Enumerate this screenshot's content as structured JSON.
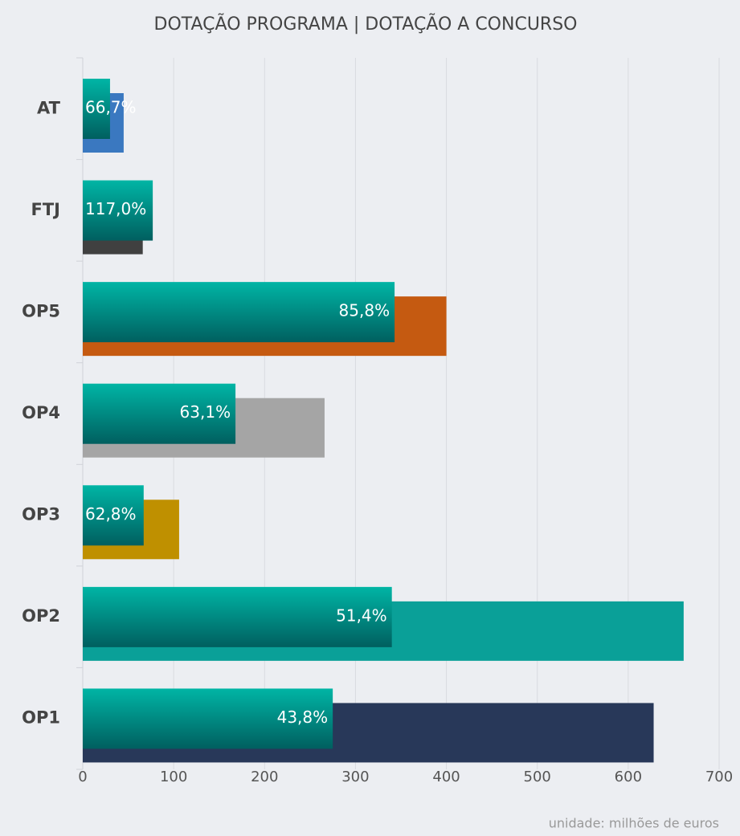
{
  "chart_data": {
    "type": "bar",
    "orientation": "horizontal",
    "title": "DOTAÇÃO PROGRAMA | DOTAÇÃO A CONCURSO",
    "categories": [
      "AT",
      "FTJ",
      "OP5",
      "OP4",
      "OP3",
      "OP2",
      "OP1"
    ],
    "series": [
      {
        "values": [
          45,
          66,
          400,
          266,
          106,
          661,
          628
        ],
        "colors": [
          "#3a78c0",
          "#404040",
          "#c55a11",
          "#a5a5a5",
          "#bf9000",
          "#0aa098",
          "#283859"
        ]
      },
      {
        "values": [
          30,
          77,
          343,
          168,
          67,
          340,
          275
        ],
        "color": "#00a59a"
      }
    ],
    "percentages": [
      66.7,
      117.0,
      85.8,
      63.1,
      62.8,
      51.4,
      43.8
    ],
    "percentage_labels": [
      "66,7%",
      "117,0%",
      "85,8%",
      "63,1%",
      "62,8%",
      "51,4%",
      "43,8%"
    ],
    "xlim": [
      0,
      700
    ],
    "xticks": [
      0,
      100,
      200,
      300,
      400,
      500,
      600,
      700
    ],
    "grid": true,
    "note": "unidade: milhões de euros"
  }
}
